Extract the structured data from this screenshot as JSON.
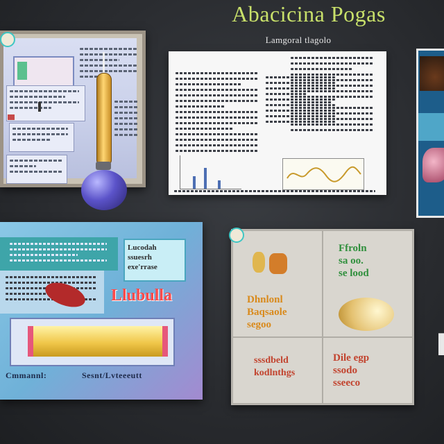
{
  "header": {
    "title": "Abacicina Pogas",
    "subtitle": "Lamgoral tlagolo"
  },
  "board_blue": {
    "badge_text": "Lucodah\nssuesrh\nexe'rrase",
    "red_label": "Llubulla",
    "caption_left": "Cmmannl:",
    "caption_right": "Sesnt/Lvteeeutt"
  },
  "board_grid": {
    "cell_top_right": "Ffroln\nsa oo.\nse lood",
    "cell_mid_left": "Dhnlonl\nBaqsaole\nsegoo",
    "cell_bottom_left": "sssdbeld\nkodlnthgs",
    "cell_bottom_right": "Dile egp\nssodo\nsseeco"
  },
  "colors": {
    "title": "#c8e06a",
    "accent_teal": "#3ea5a9",
    "red_label": "#ff4a4a",
    "grid_green": "#2f8f3c",
    "grid_orange": "#d98a1c"
  },
  "icons": [
    "magnifier-tool",
    "flask-icon",
    "blob-icon"
  ]
}
